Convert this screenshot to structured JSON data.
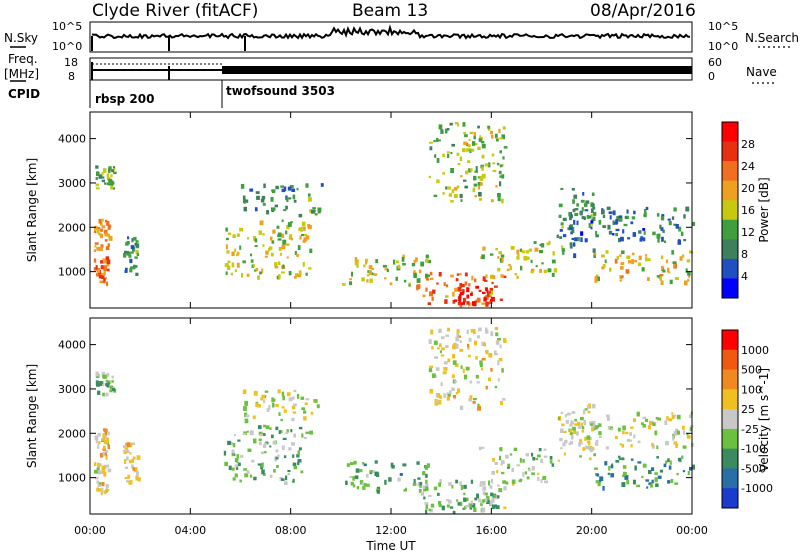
{
  "header": {
    "site_title": "Clyde River (fitACF)",
    "beam_label": "Beam 13",
    "date_label": "08/Apr/2016"
  },
  "strip_panels": {
    "noise": {
      "left_label": "N.Sky",
      "right_label": "N.Search",
      "left_ticks": [
        "10^5",
        "10^0"
      ],
      "right_ticks": [
        "10^5",
        "10^0"
      ]
    },
    "freq": {
      "left_label_1": "Freq.",
      "left_label_2": "[MHz]",
      "right_label": "Nave",
      "left_ticks": [
        "18",
        "8"
      ],
      "right_ticks": [
        "60",
        "0"
      ]
    },
    "cpid": {
      "label": "CPID",
      "modes": [
        {
          "name": "rbsp 200",
          "start_hour": 0.0
        },
        {
          "name": "twofsound 3503",
          "start_hour": 5.25
        }
      ]
    }
  },
  "x_axis": {
    "label": "Time UT",
    "ticks": [
      "00:00",
      "04:00",
      "08:00",
      "12:00",
      "16:00",
      "20:00",
      "00:00"
    ]
  },
  "power_panel": {
    "ylabel": "Slant Range [km]",
    "yticks": [
      "1000",
      "2000",
      "3000",
      "4000"
    ],
    "colorbar_label": "Power [dB]",
    "colorbar_ticks": [
      "4",
      "8",
      "12",
      "16",
      "20",
      "24",
      "28"
    ],
    "colors": [
      "#0000ff",
      "#2050c0",
      "#3e7f5c",
      "#3f9f3f",
      "#c8c810",
      "#f0a020",
      "#f07020",
      "#e83010",
      "#ff0000"
    ]
  },
  "velocity_panel": {
    "ylabel": "Velocity [m s^-1]",
    "range_label": "Slant Range [km]",
    "yticks": [
      "1000",
      "2000",
      "3000",
      "4000"
    ],
    "colorbar_ticks": [
      "1000",
      "500",
      "100",
      "25",
      "-25",
      "-100",
      "-500",
      "-1000"
    ],
    "colors": [
      "#1a3ccc",
      "#2a6ea8",
      "#3a8c60",
      "#6cc040",
      "#c8c8c8",
      "#f0c020",
      "#f08a20",
      "#f05a10",
      "#ff0000"
    ]
  },
  "chart_data": {
    "type": "heatmap",
    "x": {
      "label": "Time UT",
      "range_hours": [
        0,
        24
      ]
    },
    "y": {
      "label": "Slant Range [km]",
      "range_km": [
        180,
        4600
      ]
    },
    "power_color_range_db": [
      0,
      32
    ],
    "velocity_color_range_ms": [
      -1200,
      1200
    ],
    "scatter_regions": [
      {
        "t0": 0.15,
        "t1": 0.7,
        "r0": 700,
        "r1": 1350,
        "power_db": 24,
        "velocity_ms": 100
      },
      {
        "t0": 0.15,
        "t1": 0.75,
        "r0": 1500,
        "r1": 2200,
        "power_db": 20,
        "velocity_ms": 200
      },
      {
        "t0": 0.2,
        "t1": 0.95,
        "r0": 2900,
        "r1": 3400,
        "power_db": 12,
        "velocity_ms": -300
      },
      {
        "t0": 1.3,
        "t1": 1.9,
        "r0": 900,
        "r1": 1800,
        "power_db": 10,
        "velocity_ms": 150
      },
      {
        "t0": 5.3,
        "t1": 8.8,
        "r0": 900,
        "r1": 2200,
        "power_db": 16,
        "velocity_ms": -300
      },
      {
        "t0": 6.0,
        "t1": 9.2,
        "r0": 2300,
        "r1": 3000,
        "power_db": 10,
        "velocity_ms": 0
      },
      {
        "t0": 10.0,
        "t1": 13.5,
        "r0": 700,
        "r1": 1400,
        "power_db": 16,
        "velocity_ms": -400
      },
      {
        "t0": 13.0,
        "t1": 16.6,
        "r0": 250,
        "r1": 1000,
        "power_db": 22,
        "velocity_ms": -200
      },
      {
        "t0": 14.5,
        "t1": 16.2,
        "r0": 300,
        "r1": 700,
        "power_db": 30,
        "velocity_ms": -250
      },
      {
        "t0": 15.5,
        "t1": 18.5,
        "r0": 900,
        "r1": 1700,
        "power_db": 16,
        "velocity_ms": -150
      },
      {
        "t0": 18.6,
        "t1": 20.2,
        "r0": 1400,
        "r1": 2900,
        "power_db": 10,
        "velocity_ms": 30
      },
      {
        "t0": 20.0,
        "t1": 24.0,
        "r0": 800,
        "r1": 1500,
        "power_db": 18,
        "velocity_ms": -500
      },
      {
        "t0": 19.0,
        "t1": 24.0,
        "r0": 1700,
        "r1": 2500,
        "power_db": 8,
        "velocity_ms": 20
      },
      {
        "t0": 13.5,
        "t1": 16.5,
        "r0": 2600,
        "r1": 4400,
        "power_db": 14,
        "velocity_ms": 100
      }
    ]
  }
}
